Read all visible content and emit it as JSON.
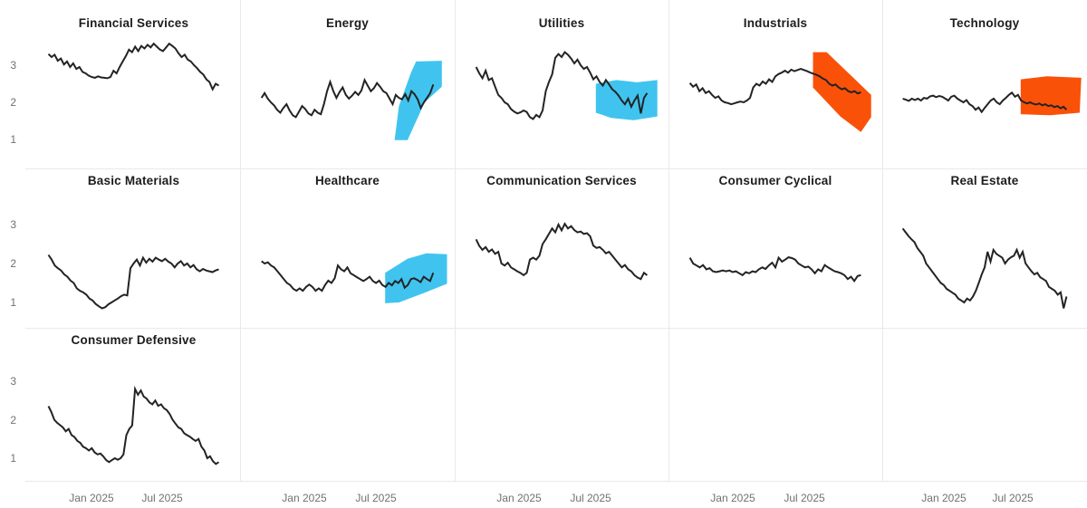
{
  "colors": {
    "line": "#232323",
    "highlight_blue": "#40c4ef",
    "highlight_orange": "#fa5109",
    "grid_border": "#e9e9e9",
    "tick_text": "#717171",
    "title_text": "#1c1c1c",
    "background": "#ffffff"
  },
  "chart_data": {
    "type": "line",
    "layout": "small-multiples-grid",
    "rows": 3,
    "columns": 5,
    "x_ticks": [
      "Jan 2025",
      "Jul 2025"
    ],
    "y_ticks": [
      "3",
      "2",
      "1"
    ],
    "ylim": [
      0.4,
      3.9
    ],
    "grid": "off",
    "legend": "none",
    "panels": [
      {
        "title": "Financial Services",
        "row": 0,
        "col": 0,
        "values": [
          3.3,
          3.22,
          3.28,
          3.12,
          3.18,
          3.02,
          3.1,
          2.95,
          3.05,
          2.9,
          2.95,
          2.82,
          2.78,
          2.72,
          2.68,
          2.66,
          2.7,
          2.67,
          2.66,
          2.65,
          2.68,
          2.85,
          2.78,
          2.95,
          3.1,
          3.25,
          3.42,
          3.35,
          3.5,
          3.38,
          3.52,
          3.45,
          3.55,
          3.48,
          3.58,
          3.5,
          3.42,
          3.38,
          3.48,
          3.58,
          3.52,
          3.45,
          3.32,
          3.22,
          3.28,
          3.15,
          3.1,
          3.0,
          2.92,
          2.82,
          2.75,
          2.62,
          2.55,
          2.35,
          2.5,
          2.45
        ]
      },
      {
        "title": "Energy",
        "row": 0,
        "col": 1,
        "values": [
          2.12,
          2.25,
          2.1,
          2.0,
          1.92,
          1.8,
          1.72,
          1.85,
          1.95,
          1.78,
          1.65,
          1.6,
          1.75,
          1.9,
          1.82,
          1.7,
          1.65,
          1.8,
          1.72,
          1.68,
          1.95,
          2.3,
          2.55,
          2.3,
          2.12,
          2.28,
          2.4,
          2.2,
          2.1,
          2.18,
          2.28,
          2.2,
          2.32,
          2.6,
          2.45,
          2.3,
          2.38,
          2.52,
          2.42,
          2.3,
          2.25,
          2.1,
          1.95,
          2.2,
          2.12,
          2.08,
          2.22,
          2.05,
          2.3,
          2.22,
          2.08,
          1.85,
          2.0,
          2.12,
          2.25,
          2.48
        ],
        "highlight": {
          "color": "blue",
          "shape": "rising-band",
          "polygon": [
            [
              0.775,
              0.98
            ],
            [
              0.8,
              1.9
            ],
            [
              0.87,
              2.8
            ],
            [
              0.9,
              3.1
            ],
            [
              1.05,
              3.12
            ],
            [
              1.05,
              2.42
            ],
            [
              0.95,
              2.0
            ],
            [
              0.85,
              0.98
            ]
          ]
        }
      },
      {
        "title": "Utilities",
        "row": 0,
        "col": 2,
        "values": [
          2.95,
          2.78,
          2.65,
          2.85,
          2.6,
          2.65,
          2.42,
          2.2,
          2.12,
          2.0,
          1.95,
          1.82,
          1.75,
          1.7,
          1.73,
          1.78,
          1.74,
          1.6,
          1.55,
          1.66,
          1.6,
          1.78,
          2.3,
          2.55,
          2.75,
          3.2,
          3.3,
          3.22,
          3.35,
          3.28,
          3.18,
          3.05,
          3.15,
          3.0,
          2.9,
          2.95,
          2.8,
          2.62,
          2.7,
          2.55,
          2.45,
          2.6,
          2.48,
          2.35,
          2.28,
          2.18,
          2.05,
          1.95,
          2.1,
          1.88,
          2.05,
          2.18,
          1.7,
          2.12,
          2.25
        ],
        "highlight": {
          "color": "blue",
          "shape": "flat-band",
          "polygon": [
            [
              0.7,
              2.5
            ],
            [
              0.82,
              2.6
            ],
            [
              0.94,
              2.54
            ],
            [
              1.06,
              2.6
            ],
            [
              1.06,
              1.62
            ],
            [
              0.92,
              1.52
            ],
            [
              0.79,
              1.58
            ],
            [
              0.7,
              1.72
            ]
          ]
        }
      },
      {
        "title": "Industrials",
        "row": 0,
        "col": 3,
        "values": [
          2.52,
          2.42,
          2.48,
          2.3,
          2.38,
          2.25,
          2.3,
          2.2,
          2.12,
          2.16,
          2.05,
          2.0,
          1.98,
          1.95,
          1.97,
          2.0,
          2.02,
          2.0,
          2.05,
          2.12,
          2.4,
          2.5,
          2.45,
          2.56,
          2.5,
          2.62,
          2.55,
          2.7,
          2.76,
          2.8,
          2.85,
          2.8,
          2.88,
          2.84,
          2.87,
          2.9,
          2.87,
          2.84,
          2.8,
          2.77,
          2.74,
          2.7,
          2.64,
          2.6,
          2.5,
          2.45,
          2.48,
          2.4,
          2.35,
          2.38,
          2.3,
          2.27,
          2.3,
          2.24,
          2.27
        ],
        "highlight": {
          "color": "orange",
          "shape": "falling-band",
          "polygon": [
            [
              0.72,
              3.35
            ],
            [
              0.8,
              3.35
            ],
            [
              1.06,
              2.2
            ],
            [
              1.06,
              1.6
            ],
            [
              1.0,
              1.2
            ],
            [
              0.88,
              1.62
            ],
            [
              0.72,
              2.4
            ]
          ]
        }
      },
      {
        "title": "Technology",
        "row": 0,
        "col": 4,
        "values": [
          2.1,
          2.07,
          2.04,
          2.1,
          2.06,
          2.1,
          2.05,
          2.12,
          2.1,
          2.16,
          2.18,
          2.14,
          2.17,
          2.15,
          2.1,
          2.05,
          2.15,
          2.18,
          2.1,
          2.05,
          2.0,
          2.06,
          1.95,
          1.9,
          1.8,
          1.86,
          1.74,
          1.85,
          1.95,
          2.05,
          2.1,
          2.0,
          1.95,
          2.05,
          2.12,
          2.2,
          2.26,
          2.15,
          2.2,
          2.05,
          2.0,
          1.97,
          2.0,
          1.96,
          1.94,
          1.97,
          1.92,
          1.95,
          1.9,
          1.92,
          1.87,
          1.9,
          1.84,
          1.88,
          1.8
        ],
        "highlight": {
          "color": "orange",
          "shape": "flat-band",
          "polygon": [
            [
              0.72,
              2.62
            ],
            [
              0.88,
              2.7
            ],
            [
              1.09,
              2.66
            ],
            [
              1.08,
              1.72
            ],
            [
              0.9,
              1.65
            ],
            [
              0.72,
              1.68
            ]
          ]
        }
      },
      {
        "title": "Basic Materials",
        "row": 1,
        "col": 0,
        "values": [
          2.22,
          2.1,
          1.95,
          1.88,
          1.82,
          1.72,
          1.66,
          1.56,
          1.5,
          1.36,
          1.3,
          1.26,
          1.2,
          1.1,
          1.05,
          0.96,
          0.9,
          0.85,
          0.88,
          0.95,
          1.0,
          1.05,
          1.1,
          1.16,
          1.2,
          1.18,
          1.88,
          2.0,
          2.1,
          1.95,
          2.15,
          2.02,
          2.12,
          2.05,
          2.15,
          2.1,
          2.06,
          2.12,
          2.05,
          2.0,
          1.9,
          2.0,
          2.06,
          1.95,
          2.0,
          1.9,
          1.96,
          1.85,
          1.8,
          1.86,
          1.82,
          1.8,
          1.78,
          1.82,
          1.85
        ]
      },
      {
        "title": "Healthcare",
        "row": 1,
        "col": 1,
        "values": [
          2.06,
          2.0,
          2.03,
          1.95,
          1.9,
          1.8,
          1.7,
          1.6,
          1.5,
          1.45,
          1.35,
          1.3,
          1.36,
          1.3,
          1.4,
          1.46,
          1.4,
          1.3,
          1.36,
          1.3,
          1.45,
          1.56,
          1.5,
          1.62,
          1.95,
          1.85,
          1.8,
          1.9,
          1.75,
          1.7,
          1.65,
          1.6,
          1.55,
          1.6,
          1.66,
          1.55,
          1.5,
          1.56,
          1.45,
          1.4,
          1.5,
          1.44,
          1.55,
          1.5,
          1.6,
          1.38,
          1.45,
          1.6,
          1.62,
          1.58,
          1.52,
          1.66,
          1.6,
          1.55,
          1.76
        ],
        "highlight": {
          "color": "blue",
          "shape": "rising-band",
          "polygon": [
            [
              0.72,
              1.76
            ],
            [
              0.85,
              2.12
            ],
            [
              0.96,
              2.26
            ],
            [
              1.08,
              2.24
            ],
            [
              1.08,
              1.48
            ],
            [
              0.95,
              1.25
            ],
            [
              0.8,
              1.0
            ],
            [
              0.72,
              0.98
            ]
          ]
        }
      },
      {
        "title": "Communication Services",
        "row": 1,
        "col": 2,
        "values": [
          2.62,
          2.45,
          2.35,
          2.42,
          2.3,
          2.36,
          2.25,
          2.3,
          2.0,
          1.95,
          2.02,
          1.9,
          1.85,
          1.8,
          1.76,
          1.7,
          1.76,
          2.1,
          2.15,
          2.1,
          2.2,
          2.5,
          2.62,
          2.76,
          2.9,
          2.8,
          3.0,
          2.85,
          3.02,
          2.9,
          2.96,
          2.86,
          2.8,
          2.82,
          2.76,
          2.78,
          2.7,
          2.46,
          2.4,
          2.42,
          2.35,
          2.26,
          2.3,
          2.2,
          2.1,
          2.0,
          1.9,
          1.96,
          1.85,
          1.8,
          1.7,
          1.64,
          1.6,
          1.76,
          1.7
        ]
      },
      {
        "title": "Consumer Cyclical",
        "row": 1,
        "col": 3,
        "values": [
          2.15,
          2.0,
          1.95,
          1.9,
          1.96,
          1.85,
          1.88,
          1.8,
          1.78,
          1.8,
          1.82,
          1.8,
          1.82,
          1.78,
          1.8,
          1.75,
          1.7,
          1.78,
          1.75,
          1.8,
          1.78,
          1.85,
          1.9,
          1.86,
          1.95,
          2.02,
          1.9,
          2.15,
          2.05,
          2.1,
          2.16,
          2.14,
          2.1,
          2.0,
          1.95,
          1.9,
          1.92,
          1.85,
          1.75,
          1.85,
          1.8,
          1.96,
          1.9,
          1.85,
          1.8,
          1.78,
          1.75,
          1.7,
          1.6,
          1.66,
          1.55,
          1.68,
          1.7
        ]
      },
      {
        "title": "Real Estate",
        "row": 1,
        "col": 4,
        "values": [
          2.9,
          2.8,
          2.7,
          2.62,
          2.55,
          2.4,
          2.3,
          2.2,
          2.0,
          1.9,
          1.8,
          1.7,
          1.6,
          1.5,
          1.45,
          1.35,
          1.3,
          1.25,
          1.2,
          1.1,
          1.05,
          1.0,
          1.1,
          1.05,
          1.15,
          1.3,
          1.5,
          1.72,
          1.9,
          2.3,
          2.05,
          2.35,
          2.25,
          2.2,
          2.15,
          2.0,
          2.1,
          2.16,
          2.2,
          2.35,
          2.15,
          2.3,
          2.0,
          1.9,
          1.8,
          1.72,
          1.76,
          1.65,
          1.6,
          1.55,
          1.4,
          1.35,
          1.3,
          1.2,
          1.26,
          0.85,
          1.15
        ]
      },
      {
        "title": "Consumer Defensive",
        "row": 2,
        "col": 0,
        "values": [
          2.35,
          2.2,
          2.0,
          1.92,
          1.86,
          1.8,
          1.7,
          1.76,
          1.6,
          1.55,
          1.45,
          1.4,
          1.3,
          1.26,
          1.2,
          1.26,
          1.15,
          1.1,
          1.12,
          1.05,
          0.95,
          0.9,
          0.95,
          1.0,
          0.96,
          1.0,
          1.1,
          1.6,
          1.76,
          1.85,
          2.8,
          2.65,
          2.76,
          2.6,
          2.55,
          2.45,
          2.4,
          2.5,
          2.36,
          2.4,
          2.3,
          2.25,
          2.15,
          2.0,
          1.9,
          1.8,
          1.76,
          1.65,
          1.6,
          1.56,
          1.5,
          1.45,
          1.5,
          1.3,
          1.2,
          1.0,
          1.05,
          0.92,
          0.85,
          0.9
        ]
      }
    ]
  }
}
